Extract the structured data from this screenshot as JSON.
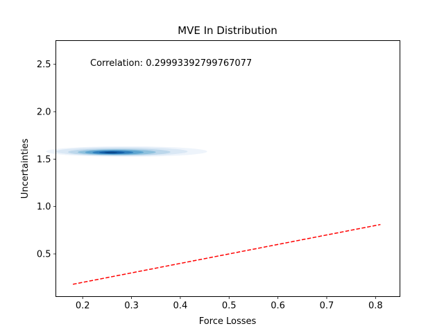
{
  "chart_data": {
    "type": "kde-density",
    "title": "MVE In Distribution",
    "xlabel": "Force Losses",
    "ylabel": "Uncertainties",
    "xlim": [
      0.145,
      0.85
    ],
    "ylim": [
      0.05,
      2.75
    ],
    "xticks": [
      0.2,
      0.3,
      0.4,
      0.5,
      0.6,
      0.7,
      0.8
    ],
    "xtick_labels": [
      "0.2",
      "0.3",
      "0.4",
      "0.5",
      "0.6",
      "0.7",
      "0.8"
    ],
    "yticks": [
      0.5,
      1.0,
      1.5,
      2.0,
      2.5
    ],
    "ytick_labels": [
      "0.5",
      "1.0",
      "1.5",
      "2.0",
      "2.5"
    ],
    "annotation": "Correlation: 0.29993392799767077",
    "grid": false,
    "reference_line": {
      "name": "y = x",
      "style": "dashed",
      "color": "#ff0000",
      "x": [
        0.18,
        0.81
      ],
      "y": [
        0.18,
        0.81
      ]
    },
    "density": {
      "colormap": "Blues",
      "peak": {
        "x": 0.26,
        "y": 1.57
      },
      "levels": [
        {
          "cx": 0.29,
          "cy": 1.58,
          "rx": 0.165,
          "ry": 0.055,
          "color": "#eef4fb"
        },
        {
          "cx": 0.28,
          "cy": 1.58,
          "rx": 0.135,
          "ry": 0.046,
          "color": "#dae8f5"
        },
        {
          "cx": 0.275,
          "cy": 1.575,
          "rx": 0.105,
          "ry": 0.038,
          "color": "#bcd7eb"
        },
        {
          "cx": 0.27,
          "cy": 1.573,
          "rx": 0.08,
          "ry": 0.03,
          "color": "#8dc0dd"
        },
        {
          "cx": 0.265,
          "cy": 1.572,
          "rx": 0.06,
          "ry": 0.024,
          "color": "#5da4d0"
        },
        {
          "cx": 0.262,
          "cy": 1.571,
          "rx": 0.042,
          "ry": 0.018,
          "color": "#2f7ebc"
        },
        {
          "cx": 0.26,
          "cy": 1.57,
          "rx": 0.026,
          "ry": 0.012,
          "color": "#115ca5"
        },
        {
          "cx": 0.258,
          "cy": 1.57,
          "rx": 0.013,
          "ry": 0.007,
          "color": "#08468a"
        }
      ]
    }
  }
}
